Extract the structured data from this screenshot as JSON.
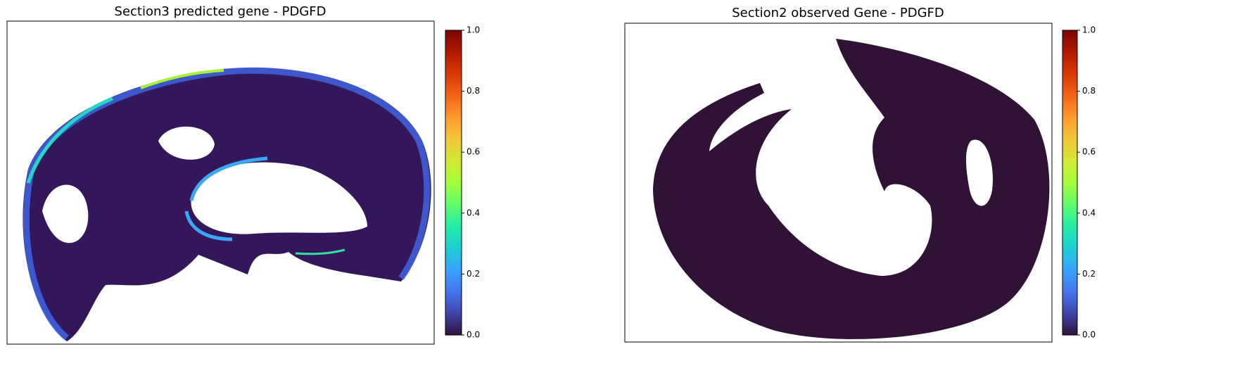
{
  "chart_data": [
    {
      "type": "heatmap",
      "title": "Section3 predicted gene - PDGFD",
      "clim": [
        0,
        1
      ],
      "cticks": [
        {
          "value": 0,
          "label": "0.0"
        },
        {
          "value": 0.2,
          "label": "0.2"
        },
        {
          "value": 0.4,
          "label": "0.4"
        },
        {
          "value": 0.6,
          "label": "0.6"
        },
        {
          "value": 0.8,
          "label": "0.8"
        },
        {
          "value": 1,
          "label": "1.0"
        }
      ],
      "colormap": [
        "#30123b",
        "#4145ab",
        "#4675ed",
        "#39a2fc",
        "#1bcfd4",
        "#24eca6",
        "#61fc6c",
        "#a4fc3b",
        "#d1e834",
        "#f3c63a",
        "#fe9b2d",
        "#f36315",
        "#d93806",
        "#b11901",
        "#7a0402"
      ]
    },
    {
      "type": "heatmap",
      "title": "Section2 observed Gene - PDGFD",
      "clim": [
        0,
        1
      ],
      "cticks": [
        {
          "value": 0,
          "label": "0.0"
        },
        {
          "value": 0.2,
          "label": "0.2"
        },
        {
          "value": 0.4,
          "label": "0.4"
        },
        {
          "value": 0.6,
          "label": "0.6"
        },
        {
          "value": 0.8,
          "label": "0.8"
        },
        {
          "value": 1,
          "label": "1.0"
        }
      ],
      "colormap": [
        "#30123b",
        "#4145ab",
        "#4675ed",
        "#39a2fc",
        "#1bcfd4",
        "#24eca6",
        "#61fc6c",
        "#a4fc3b",
        "#d1e834",
        "#f3c63a",
        "#fe9b2d",
        "#f36315",
        "#d93806",
        "#b11901",
        "#7a0402"
      ]
    }
  ]
}
